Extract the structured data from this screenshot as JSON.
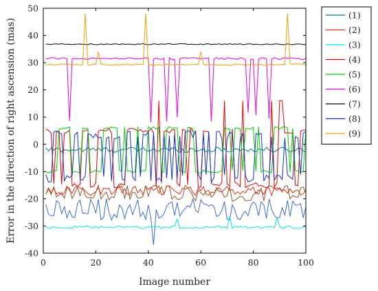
{
  "chart_data": {
    "type": "line",
    "title": "",
    "xlabel": "Image number",
    "ylabel": "Error in the direction of right ascension (mas)",
    "xlim": [
      0,
      100
    ],
    "ylim": [
      -40,
      50
    ],
    "xticks": [
      "0",
      "20",
      "40",
      "60",
      "80",
      "100"
    ],
    "yticks": [
      "50",
      "40",
      "30",
      "20",
      "10",
      "0",
      "-10",
      "-20",
      "-30",
      "-40"
    ],
    "grid": false,
    "legend_position": "right",
    "series": [
      {
        "name": "(1)",
        "color": "#008080",
        "baseline": -2.0,
        "spread": 1.0,
        "pattern": "noise",
        "high": null,
        "low": null,
        "spikes": []
      },
      {
        "name": "(2)",
        "color": "#e03010",
        "baseline": -17.0,
        "spread": 1.8,
        "pattern": "noise",
        "high": null,
        "low": null,
        "spikes": []
      },
      {
        "name": "(3)",
        "color": "#00e5e5",
        "baseline": -30.5,
        "spread": 0.5,
        "pattern": "noise",
        "high": null,
        "low": null,
        "spikes": [
          [
            51,
            -27.5
          ],
          [
            71,
            -26.5
          ],
          [
            89,
            -27.0
          ]
        ]
      },
      {
        "name": "(4)",
        "color": "#e00000",
        "baseline": 5.0,
        "spread": 1.0,
        "pattern": "switch",
        "high": 16.0,
        "low": -15.0,
        "spikes": []
      },
      {
        "name": "(5)",
        "color": "#00cc00",
        "baseline": 6.0,
        "spread": 0.5,
        "pattern": "switch",
        "high": 6.5,
        "low": -10.0,
        "spikes": []
      },
      {
        "name": "(6)",
        "color": "#e000e0",
        "baseline": 31.5,
        "spread": 0.4,
        "pattern": "dips",
        "high": 32.0,
        "low": 8.0,
        "spikes": []
      },
      {
        "name": "(7)",
        "color": "#000000",
        "baseline": 36.8,
        "spread": 0.2,
        "pattern": "noise",
        "high": null,
        "low": null,
        "spikes": []
      },
      {
        "name": "(8)",
        "color": "#1030c0",
        "baseline": -2.0,
        "spread": 10.0,
        "pattern": "wild",
        "high": 5.0,
        "low": -14.0,
        "spikes": []
      },
      {
        "name": "(9)",
        "color": "#f0a000",
        "baseline": 29.3,
        "spread": 0.3,
        "pattern": "noise",
        "high": null,
        "low": null,
        "spikes": [
          [
            16,
            48.0
          ],
          [
            21,
            34.0
          ],
          [
            39,
            48.0
          ],
          [
            60,
            34.0
          ],
          [
            93,
            48.0
          ]
        ]
      }
    ],
    "extra_lines": [
      {
        "color": "#8b5a2b",
        "baseline": -18.0,
        "spread": 3.0
      },
      {
        "color": "#3a6ad0",
        "baseline": -24.0,
        "spread": 4.0,
        "spikes": [
          [
            42,
            -37.0
          ]
        ]
      }
    ]
  }
}
